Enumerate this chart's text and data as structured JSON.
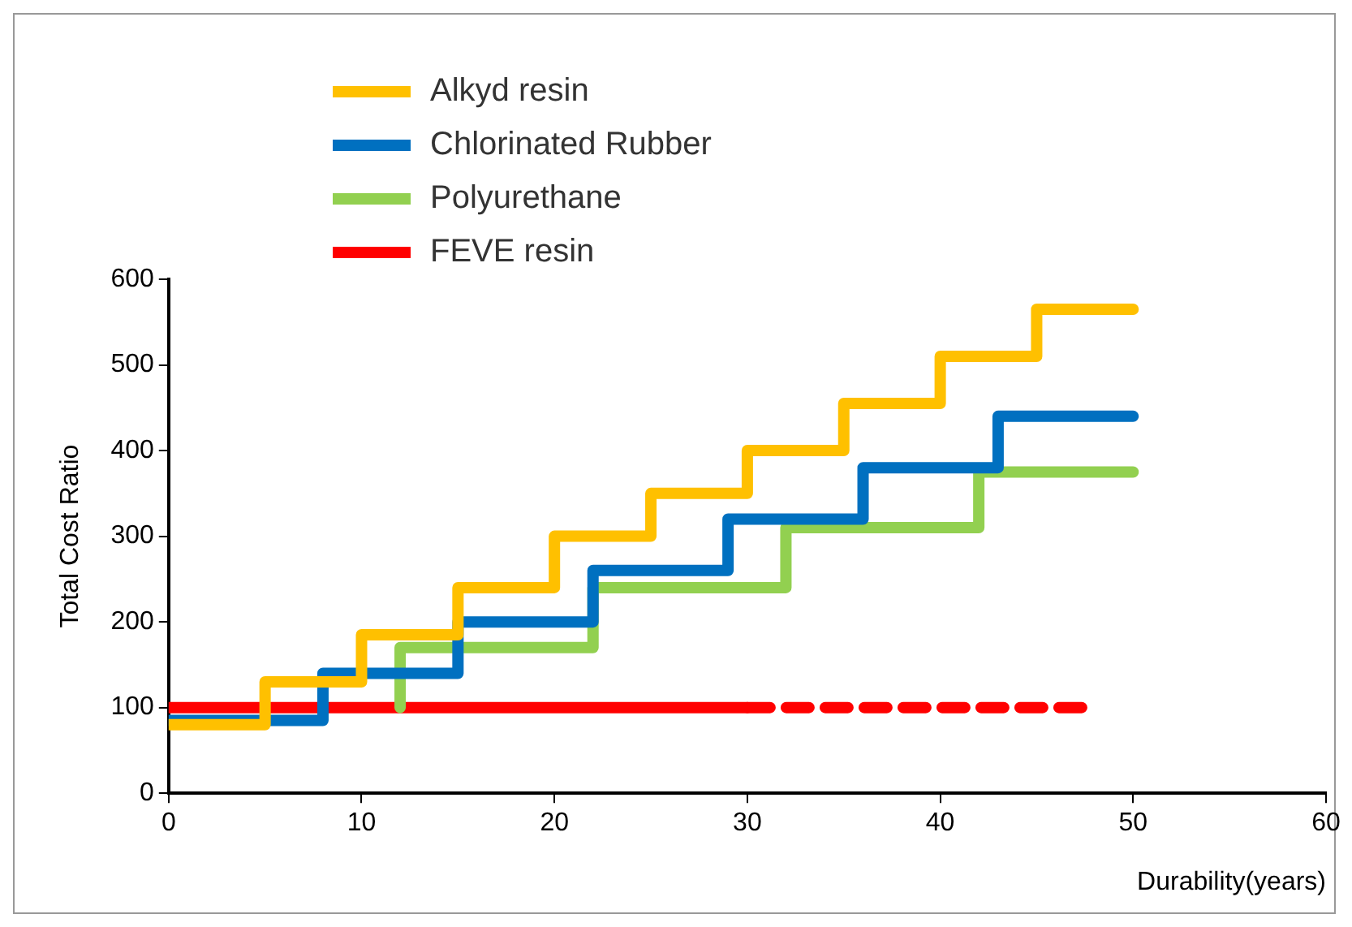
{
  "chart_data": {
    "type": "step",
    "xlabel": "Durability(years)",
    "ylabel": "Total Cost Ratio",
    "xlim": [
      0,
      60
    ],
    "xticks": [
      0,
      10,
      20,
      30,
      40,
      50,
      60
    ],
    "ylim": [
      0,
      600
    ],
    "yticks": [
      0,
      100,
      200,
      300,
      400,
      500,
      600
    ],
    "grid": false,
    "legend": "top left",
    "marker": "none",
    "series": [
      {
        "name": "Alkyd resin",
        "color": "#ffc000",
        "x": [
          0,
          5,
          10,
          15,
          20,
          25,
          30,
          35,
          40,
          45,
          50
        ],
        "values": [
          80,
          130,
          185,
          240,
          300,
          350,
          400,
          455,
          510,
          565,
          565
        ]
      },
      {
        "name": "Chlorinated Rubber",
        "color": "#0070c0",
        "x": [
          0,
          8,
          15,
          22,
          29,
          36,
          43,
          50
        ],
        "values": [
          85,
          140,
          200,
          260,
          320,
          380,
          440,
          440
        ]
      },
      {
        "name": "Polyurethane",
        "color": "#92d050",
        "x": [
          12,
          12,
          22,
          32,
          42,
          50
        ],
        "values": [
          100,
          170,
          240,
          310,
          375,
          375
        ]
      },
      {
        "name": "FEVE resin",
        "color": "#ff0000",
        "x": [
          0,
          30
        ],
        "values": [
          100,
          100
        ],
        "line_style": "solid"
      },
      {
        "color": "#ff0000",
        "x": [
          30,
          48
        ],
        "values": [
          100,
          100
        ],
        "line_style": "dashed"
      }
    ]
  }
}
